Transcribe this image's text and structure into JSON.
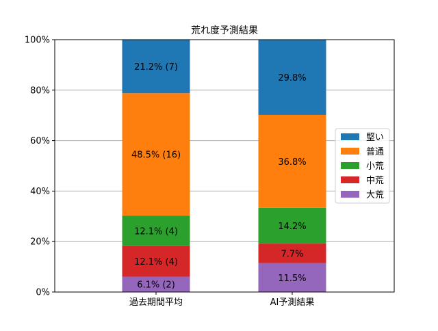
{
  "chart_data": {
    "type": "bar",
    "stacked": true,
    "title": "荒れ度予測結果",
    "categories": [
      "過去期間平均",
      "AI予測結果"
    ],
    "ylim": [
      0,
      100
    ],
    "yticks": [
      0,
      20,
      40,
      60,
      80,
      100
    ],
    "ytick_labels": [
      "0%",
      "20%",
      "40%",
      "60%",
      "80%",
      "100%"
    ],
    "grid": "y",
    "legend_position": "center-right",
    "series": [
      {
        "name": "大荒",
        "color": "#9467bd",
        "values": [
          6.1,
          11.5
        ],
        "labels": [
          "6.1% (2)",
          "11.5%"
        ]
      },
      {
        "name": "中荒",
        "color": "#d62728",
        "values": [
          12.1,
          7.7
        ],
        "labels": [
          "12.1% (4)",
          "7.7%"
        ]
      },
      {
        "name": "小荒",
        "color": "#2ca02c",
        "values": [
          12.1,
          14.2
        ],
        "labels": [
          "12.1% (4)",
          "14.2%"
        ]
      },
      {
        "name": "普通",
        "color": "#ff7f0e",
        "values": [
          48.5,
          36.8
        ],
        "labels": [
          "48.5% (16)",
          "36.8%"
        ]
      },
      {
        "name": "堅い",
        "color": "#1f77b4",
        "values": [
          21.2,
          29.8
        ],
        "labels": [
          "21.2% (7)",
          "29.8%"
        ]
      }
    ],
    "legend_order": [
      "堅い",
      "普通",
      "小荒",
      "中荒",
      "大荒"
    ]
  }
}
